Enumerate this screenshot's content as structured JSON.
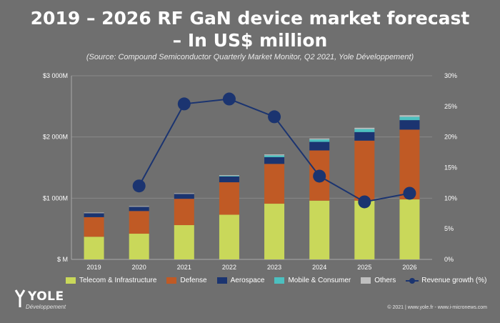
{
  "title_line1": "2019 – 2026 RF GaN device market forecast",
  "title_line2": "– In US$ million",
  "source": "(Source: Compound Semiconductor Quarterly Market Monitor, Q2 2021, Yole Développement)",
  "logo": {
    "name": "YOLE",
    "subtitle": "Développement"
  },
  "footer": "© 2021 | www.yole.fr - www.i-micronews.com",
  "colors": {
    "background": "#6f6f6f",
    "telecom": "#c9d85a",
    "defense": "#c05a25",
    "aerospace": "#1b3470",
    "mobile": "#4cc0c0",
    "others": "#bfbfbf",
    "growth_line": "#1b3470"
  },
  "chart_data": {
    "type": "bar",
    "stacked": true,
    "categories": [
      "2019",
      "2020",
      "2021",
      "2022",
      "2023",
      "2024",
      "2025",
      "2026"
    ],
    "series": [
      {
        "name": "Telecom & Infrastructure",
        "values": [
          370,
          420,
          560,
          730,
          910,
          960,
          960,
          980
        ]
      },
      {
        "name": "Defense",
        "values": [
          320,
          370,
          430,
          530,
          650,
          820,
          980,
          1140
        ]
      },
      {
        "name": "Aerospace",
        "values": [
          65,
          70,
          80,
          95,
          110,
          140,
          140,
          155
        ]
      },
      {
        "name": "Mobile & Consumer",
        "values": [
          0,
          0,
          0,
          10,
          30,
          40,
          50,
          55
        ]
      },
      {
        "name": "Others",
        "values": [
          10,
          10,
          10,
          10,
          15,
          15,
          20,
          25
        ]
      }
    ],
    "line_series": {
      "name": "Revenue growth (%)",
      "axis": "right",
      "values": [
        null,
        12.0,
        25.4,
        26.2,
        23.3,
        13.6,
        9.4,
        10.8
      ]
    },
    "ylim": [
      0,
      3000
    ],
    "yticks": [
      "$ M",
      "$1 000M",
      "$2 000M",
      "$3 000M"
    ],
    "y2lim": [
      0,
      30
    ],
    "y2ticks": [
      "0%",
      "5%",
      "10%",
      "15%",
      "20%",
      "25%",
      "30%"
    ],
    "grid": true,
    "legend_position": "bottom"
  }
}
